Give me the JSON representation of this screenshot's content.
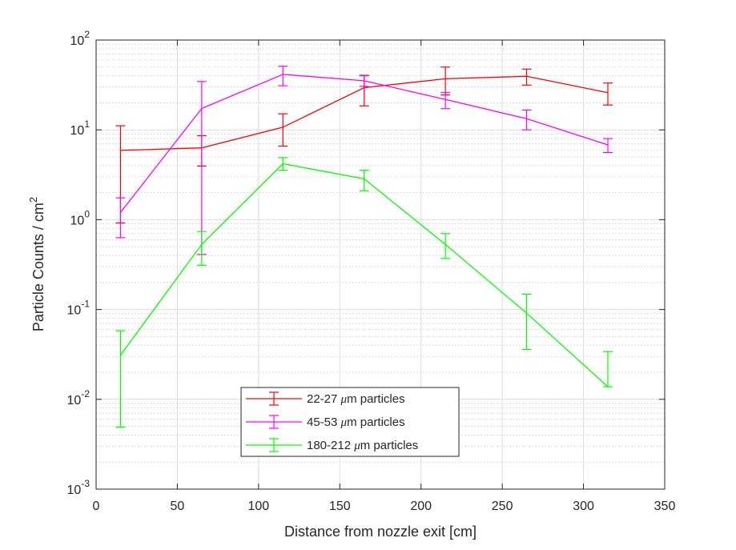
{
  "chart_data": {
    "type": "line",
    "xlabel": "Distance from nozzle exit [cm]",
    "ylabel": "Particle Counts / cm",
    "ylabel_sup": "2",
    "xlim": [
      0,
      350
    ],
    "ylim": [
      0.001,
      100
    ],
    "yscale": "log",
    "x_ticks": [
      0,
      50,
      100,
      150,
      200,
      250,
      300,
      350
    ],
    "x_tick_labels": [
      "0",
      "50",
      "100",
      "150",
      "200",
      "250",
      "300",
      "350"
    ],
    "y_ticks": [
      0.001,
      0.01,
      0.1,
      1,
      10,
      100
    ],
    "y_tick_labels": [
      {
        "base": "10",
        "exp": "-3"
      },
      {
        "base": "10",
        "exp": "-2"
      },
      {
        "base": "10",
        "exp": "-1"
      },
      {
        "base": "10",
        "exp": "0"
      },
      {
        "base": "10",
        "exp": "1"
      },
      {
        "base": "10",
        "exp": "2"
      }
    ],
    "grid": true,
    "minor_grid": true,
    "legend_position": "bottom-center",
    "x": [
      15,
      65,
      115,
      165,
      215,
      265,
      315
    ],
    "series": [
      {
        "name": "22-27 μm particles",
        "color": "#ff0000",
        "values": [
          5.9,
          6.3,
          10.7,
          29.5,
          37.0,
          39.5,
          25.9
        ],
        "err_low": [
          0.92,
          3.95,
          6.6,
          18.5,
          24.5,
          31.5,
          18.9
        ],
        "err_high": [
          11.1,
          8.6,
          15.1,
          40.5,
          50.0,
          47.5,
          33.2
        ]
      },
      {
        "name": "45-53 μm particles",
        "color": "#ff00ff",
        "values": [
          1.2,
          17.3,
          41.5,
          35.2,
          21.8,
          13.3,
          6.8
        ],
        "err_low": [
          0.63,
          0.41,
          31.0,
          30.5,
          17.2,
          10.0,
          5.6
        ],
        "err_high": [
          1.75,
          34.5,
          51.0,
          40.0,
          26.0,
          16.6,
          8.0
        ]
      },
      {
        "name": "180-212 μm particles",
        "color": "#00ff00",
        "values": [
          0.031,
          0.53,
          4.2,
          2.85,
          0.53,
          0.091,
          0.0138
        ],
        "err_low": [
          0.0049,
          0.31,
          3.55,
          2.1,
          0.37,
          0.036,
          0.0138
        ],
        "err_high": [
          0.058,
          0.74,
          4.9,
          3.55,
          0.7,
          0.148,
          0.034
        ]
      }
    ],
    "legend_entries": [
      {
        "prefix": "22-27 ",
        "mu": "μ",
        "suffix": "m particles"
      },
      {
        "prefix": "45-53 ",
        "mu": "μ",
        "suffix": "m particles"
      },
      {
        "prefix": "180-212 ",
        "mu": "μ",
        "suffix": "m particles"
      }
    ]
  }
}
